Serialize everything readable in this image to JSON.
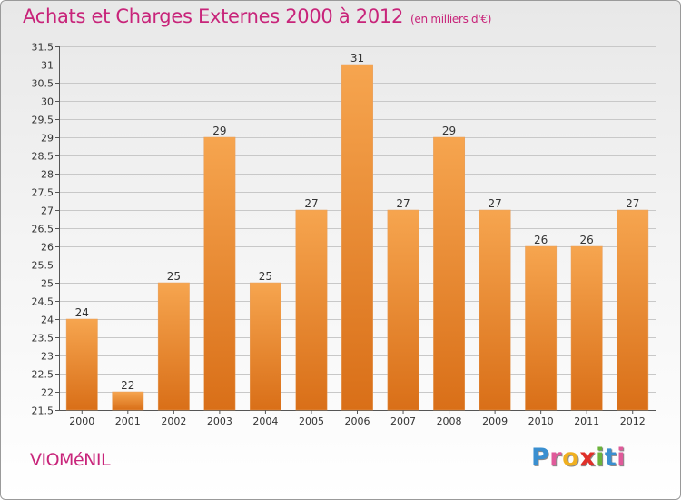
{
  "header": {
    "title": "Achats et Charges Externes 2000 à 2012",
    "unit": "(en milliers d'€)"
  },
  "footer": {
    "place": "VIOMéNIL",
    "logo": "Proxiti"
  },
  "colors": {
    "title": "#c8247a",
    "bar_light": "#f6a54f",
    "bar_dark": "#d96f18",
    "grid": "#c8c8c8"
  },
  "chart_data": {
    "type": "bar",
    "title": "Achats et Charges Externes 2000 à 2012",
    "xlabel": "",
    "ylabel": "",
    "categories": [
      "2000",
      "2001",
      "2002",
      "2003",
      "2004",
      "2005",
      "2006",
      "2007",
      "2008",
      "2009",
      "2010",
      "2011",
      "2012"
    ],
    "values": [
      24,
      22,
      25,
      29,
      25,
      27,
      31,
      27,
      29,
      27,
      26,
      26,
      27
    ],
    "data_labels": [
      "24",
      "22",
      "25",
      "29",
      "25",
      "27",
      "31",
      "27",
      "29",
      "27",
      "26",
      "26",
      "27"
    ],
    "ylim": [
      21.5,
      31.5
    ],
    "yticks": [
      "21.5",
      "22",
      "22.5",
      "23",
      "23.5",
      "24",
      "24.5",
      "25",
      "25.5",
      "26",
      "26.5",
      "27",
      "27.5",
      "28",
      "28.5",
      "29",
      "29.5",
      "30",
      "30.5",
      "31",
      "31.5"
    ],
    "grid": true
  }
}
